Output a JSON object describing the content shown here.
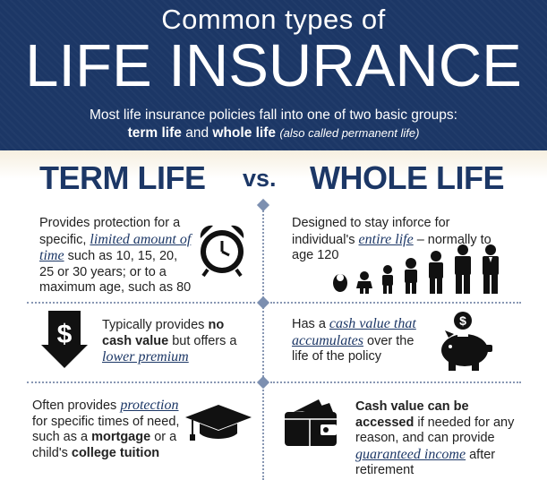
{
  "header": {
    "kicker": "Common types of",
    "title": "LIFE INSURANCE",
    "subtitle_line1": "Most life insurance policies fall into one of two basic groups:",
    "subtitle_term": "term life",
    "subtitle_and": " and ",
    "subtitle_whole": "whole life",
    "subtitle_note": "(also called permanent life)"
  },
  "columns": {
    "left_title": "TERM LIFE",
    "vs": "vs.",
    "right_title": "WHOLE LIFE"
  },
  "rows": {
    "term_1": {
      "pre": "Provides protection for a specific, ",
      "hl": "limited amount of time",
      "post": " such as 10, 15, 20, 25 or 30 years; or to a maximum age, such as 80",
      "icon": "alarm-clock-icon"
    },
    "whole_1": {
      "pre": "Designed to stay inforce for individual's ",
      "hl": "entire life",
      "post": " – normally to age 120",
      "icon": "people-growth-icon"
    },
    "term_2": {
      "pre": "Typically provides ",
      "bold": "no cash value",
      "mid": " but offers a ",
      "hl": "lower premium",
      "icon": "dollar-down-arrow-icon"
    },
    "whole_2": {
      "pre": "Has a ",
      "hl": "cash value that accumulates",
      "post": " over the life of the policy",
      "icon": "piggy-bank-icon"
    },
    "term_3": {
      "pre": "Often provides ",
      "hl": "protection",
      "mid1": " for specific times of need, such as a ",
      "bold1": "mortgage",
      "mid2": " or a child's ",
      "bold2": "college tuition",
      "icon": "graduation-cap-icon"
    },
    "whole_3": {
      "bold": "Cash value can be accessed",
      "mid": " if needed for any reason, and can provide ",
      "hl": "guaranteed income",
      "post": " after retirement",
      "icon": "wallet-icon"
    }
  },
  "colors": {
    "navy": "#1c3766",
    "accent": "#7c8fb0",
    "text": "#222222"
  }
}
